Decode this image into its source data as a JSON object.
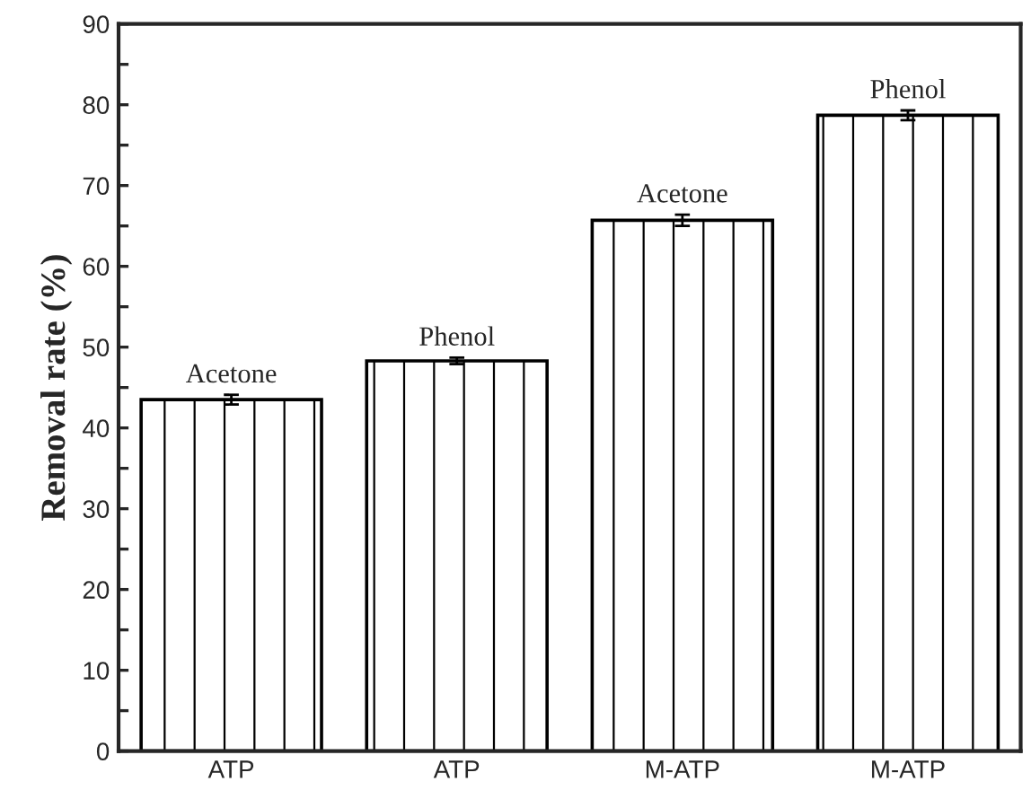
{
  "chart_data": {
    "type": "bar",
    "ylabel": "Removal rate (%)",
    "categories": [
      "ATP",
      "ATP",
      "M-ATP",
      "M-ATP"
    ],
    "values": [
      43.5,
      48.3,
      65.7,
      78.7
    ],
    "errors": [
      0.6,
      0.4,
      0.7,
      0.6
    ],
    "annotations": [
      "Acetone",
      "Phenol",
      "Acetone",
      "Phenol"
    ],
    "ylim": [
      0,
      90
    ],
    "yticks": [
      0,
      {
        "value": 5,
        "label": null
      },
      10,
      {
        "value": 15,
        "label": null
      },
      20,
      {
        "value": 25,
        "label": null
      },
      30,
      {
        "value": 35,
        "label": null
      },
      40,
      {
        "value": 45,
        "label": null
      },
      50,
      {
        "value": 55,
        "label": null
      },
      60,
      {
        "value": 65,
        "label": null
      },
      70,
      {
        "value": 75,
        "label": null
      },
      80,
      {
        "value": 85,
        "label": null
      },
      90
    ],
    "grid": false,
    "legend": false
  }
}
